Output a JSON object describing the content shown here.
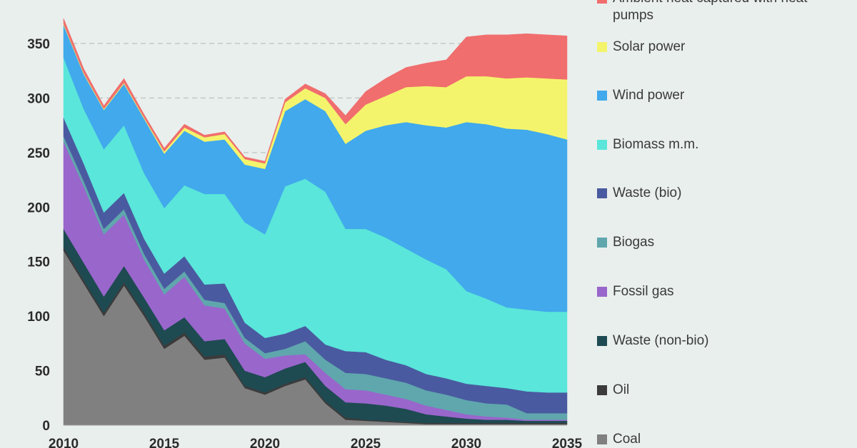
{
  "chart_data": {
    "type": "area",
    "stacked": true,
    "x": [
      2010,
      2011,
      2012,
      2013,
      2014,
      2015,
      2016,
      2017,
      2018,
      2019,
      2020,
      2021,
      2022,
      2023,
      2024,
      2025,
      2026,
      2027,
      2028,
      2029,
      2030,
      2031,
      2032,
      2033,
      2034,
      2035
    ],
    "x_ticks": [
      "2010",
      "2015",
      "2020",
      "2025",
      "2030",
      "2035"
    ],
    "y_ticks": [
      "0",
      "50",
      "100",
      "150",
      "200",
      "250",
      "300",
      "350"
    ],
    "ylim": [
      0,
      370
    ],
    "xlim": [
      2010,
      2035
    ],
    "grid": "horizontal dashed",
    "legend_placement": "right",
    "series": [
      {
        "name": "Coal",
        "color": "#808080",
        "values": [
          160,
          130,
          100,
          128,
          100,
          70,
          82,
          60,
          62,
          34,
          28,
          36,
          42,
          20,
          5,
          4,
          3,
          2,
          1,
          1,
          1,
          1,
          1,
          1,
          1,
          1
        ]
      },
      {
        "name": "Oil",
        "color": "#3b3b3b",
        "values": [
          3,
          3,
          3,
          3,
          3,
          3,
          3,
          3,
          3,
          2,
          2,
          2,
          2,
          2,
          2,
          1,
          1,
          1,
          1,
          1,
          1,
          1,
          1,
          1,
          1,
          1
        ]
      },
      {
        "name": "Waste (non-bio)",
        "color": "#1e4a52",
        "values": [
          17,
          16,
          15,
          15,
          14,
          14,
          14,
          14,
          14,
          14,
          14,
          14,
          14,
          14,
          14,
          15,
          14,
          12,
          8,
          6,
          4,
          3,
          3,
          2,
          2,
          2
        ]
      },
      {
        "name": "Fossil gas",
        "color": "#9966cc",
        "values": [
          80,
          70,
          57,
          47,
          35,
          33,
          37,
          33,
          28,
          25,
          17,
          12,
          7,
          12,
          12,
          12,
          10,
          9,
          8,
          6,
          4,
          3,
          2,
          1,
          1,
          1
        ]
      },
      {
        "name": "Biogas",
        "color": "#5fa7ad",
        "values": [
          5,
          5,
          5,
          5,
          5,
          5,
          5,
          5,
          5,
          5,
          5,
          6,
          12,
          12,
          15,
          15,
          15,
          15,
          14,
          14,
          13,
          12,
          12,
          6,
          6,
          6
        ]
      },
      {
        "name": "Waste (bio)",
        "color": "#4a5aa0",
        "values": [
          17,
          16,
          15,
          15,
          14,
          14,
          14,
          14,
          18,
          14,
          14,
          14,
          14,
          14,
          20,
          20,
          17,
          16,
          15,
          15,
          15,
          16,
          15,
          20,
          19,
          19
        ]
      },
      {
        "name": "Biomass m.m.",
        "color": "#5ae6da",
        "values": [
          55,
          50,
          58,
          62,
          60,
          60,
          65,
          83,
          82,
          92,
          95,
          135,
          135,
          140,
          112,
          113,
          112,
          107,
          105,
          100,
          85,
          80,
          74,
          75,
          74,
          74
        ]
      },
      {
        "name": "Wind power",
        "color": "#41a9ec",
        "values": [
          30,
          32,
          36,
          38,
          50,
          50,
          50,
          48,
          50,
          53,
          60,
          69,
          73,
          74,
          78,
          90,
          103,
          116,
          123,
          130,
          155,
          160,
          164,
          165,
          163,
          158
        ]
      },
      {
        "name": "Solar power",
        "color": "#f4f46c",
        "values": [
          1,
          1,
          1,
          1,
          1,
          2,
          3,
          4,
          5,
          5,
          5,
          8,
          10,
          12,
          18,
          24,
          27,
          32,
          36,
          37,
          42,
          44,
          46,
          48,
          51,
          55
        ]
      },
      {
        "name": "Ambient heat captured with heat pumps",
        "color": "#f06e6e",
        "values": [
          5,
          4,
          3,
          4,
          3,
          3,
          3,
          2,
          2,
          2,
          2,
          3,
          4,
          4,
          8,
          12,
          16,
          18,
          21,
          25,
          36,
          38,
          40,
          40,
          40,
          40
        ]
      }
    ],
    "legend_order": [
      "Ambient heat captured with heat pumps",
      "Solar power",
      "Wind power",
      "Biomass m.m.",
      "Waste (bio)",
      "Biogas",
      "Fossil gas",
      "Waste (non-bio)",
      "Oil",
      "Coal"
    ]
  }
}
